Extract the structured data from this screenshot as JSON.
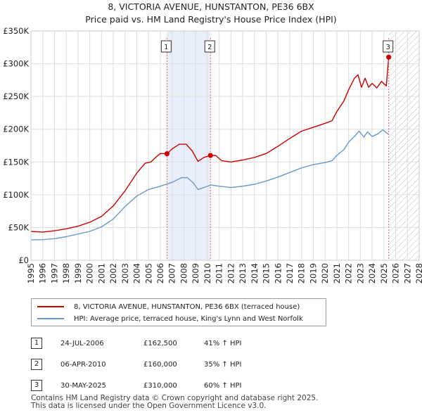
{
  "title_line1": "8, VICTORIA AVENUE, HUNSTANTON, PE36 6BX",
  "title_line2": "Price paid vs. HM Land Registry's House Price Index (HPI)",
  "chart_data": {
    "type": "line",
    "title": "8, VICTORIA AVENUE, HUNSTANTON, PE36 6BX",
    "subtitle": "Price paid vs. HM Land Registry's House Price Index (HPI)",
    "x_range": [
      1995,
      2028
    ],
    "ylim": [
      0,
      350000
    ],
    "y_ticks": [
      0,
      50000,
      100000,
      150000,
      200000,
      250000,
      300000,
      350000
    ],
    "y_tick_labels": [
      "£0",
      "£50K",
      "£100K",
      "£150K",
      "£200K",
      "£250K",
      "£300K",
      "£350K"
    ],
    "x_tick_labels": [
      "1995",
      "1996",
      "1997",
      "1998",
      "1999",
      "2000",
      "2001",
      "2002",
      "2003",
      "2004",
      "2005",
      "2006",
      "2007",
      "2008",
      "2009",
      "2010",
      "2011",
      "2012",
      "2013",
      "2014",
      "2015",
      "2016",
      "2017",
      "2018",
      "2019",
      "2020",
      "2021",
      "2022",
      "2023",
      "2024",
      "2025",
      "2026",
      "2027",
      "2028"
    ],
    "grid": true,
    "shaded_region": [
      2006.56,
      2010.26
    ],
    "future_hatch_from": 2025.41,
    "series": [
      {
        "name": "8, VICTORIA AVENUE, HUNSTANTON, PE36 6BX (terraced house)",
        "color": "#cc0000",
        "points": [
          [
            1995,
            44000
          ],
          [
            1996,
            43000
          ],
          [
            1997,
            45000
          ],
          [
            1998,
            48000
          ],
          [
            1999,
            52000
          ],
          [
            2000,
            58000
          ],
          [
            2001,
            67000
          ],
          [
            2002,
            83000
          ],
          [
            2003,
            106000
          ],
          [
            2004,
            133000
          ],
          [
            2004.7,
            148000
          ],
          [
            2005.2,
            150000
          ],
          [
            2005.6,
            157000
          ],
          [
            2006,
            163000
          ],
          [
            2006.56,
            162500
          ],
          [
            2007,
            170000
          ],
          [
            2007.6,
            177000
          ],
          [
            2008.2,
            177000
          ],
          [
            2008.7,
            167000
          ],
          [
            2009.2,
            151000
          ],
          [
            2009.7,
            157000
          ],
          [
            2010.26,
            160000
          ],
          [
            2010.7,
            160000
          ],
          [
            2011.2,
            152000
          ],
          [
            2012,
            150000
          ],
          [
            2013,
            153000
          ],
          [
            2014,
            157000
          ],
          [
            2015,
            163000
          ],
          [
            2016,
            174000
          ],
          [
            2017,
            186000
          ],
          [
            2018,
            197000
          ],
          [
            2019,
            203000
          ],
          [
            2020,
            209000
          ],
          [
            2020.6,
            213000
          ],
          [
            2021,
            227000
          ],
          [
            2021.6,
            243000
          ],
          [
            2022,
            260000
          ],
          [
            2022.5,
            278000
          ],
          [
            2022.8,
            283000
          ],
          [
            2023.1,
            264000
          ],
          [
            2023.4,
            278000
          ],
          [
            2023.7,
            264000
          ],
          [
            2024,
            270000
          ],
          [
            2024.4,
            263000
          ],
          [
            2024.8,
            273000
          ],
          [
            2025.2,
            266000
          ],
          [
            2025.41,
            310000
          ]
        ]
      },
      {
        "name": "HPI: Average price, terraced house, King's Lynn and West Norfolk",
        "color": "#6699cc",
        "points": [
          [
            1995,
            31000
          ],
          [
            1996,
            31500
          ],
          [
            1997,
            33000
          ],
          [
            1998,
            36000
          ],
          [
            1999,
            40000
          ],
          [
            2000,
            44000
          ],
          [
            2001,
            51000
          ],
          [
            2002,
            63000
          ],
          [
            2003,
            82000
          ],
          [
            2004,
            98000
          ],
          [
            2005,
            108000
          ],
          [
            2006,
            113000
          ],
          [
            2007,
            119000
          ],
          [
            2007.8,
            126000
          ],
          [
            2008.3,
            126000
          ],
          [
            2008.8,
            118000
          ],
          [
            2009.2,
            108000
          ],
          [
            2009.7,
            111000
          ],
          [
            2010.3,
            115000
          ],
          [
            2011,
            113000
          ],
          [
            2012,
            111000
          ],
          [
            2013,
            113000
          ],
          [
            2014,
            116000
          ],
          [
            2015,
            121000
          ],
          [
            2016,
            127000
          ],
          [
            2017,
            134000
          ],
          [
            2018,
            141000
          ],
          [
            2019,
            146000
          ],
          [
            2020,
            149000
          ],
          [
            2020.6,
            152000
          ],
          [
            2021,
            160000
          ],
          [
            2021.6,
            169000
          ],
          [
            2022,
            180000
          ],
          [
            2022.6,
            191000
          ],
          [
            2022.9,
            197000
          ],
          [
            2023.3,
            188000
          ],
          [
            2023.6,
            196000
          ],
          [
            2024,
            189000
          ],
          [
            2024.5,
            193000
          ],
          [
            2024.9,
            199000
          ],
          [
            2025.4,
            192000
          ]
        ]
      }
    ],
    "sales": [
      {
        "marker": "1",
        "x": 2006.56,
        "price": 162500
      },
      {
        "marker": "2",
        "x": 2010.26,
        "price": 160000
      },
      {
        "marker": "3",
        "x": 2025.41,
        "price": 310000
      }
    ]
  },
  "legend": {
    "property_label": "8, VICTORIA AVENUE, HUNSTANTON, PE36 6BX (terraced house)",
    "hpi_label": "HPI: Average price, terraced house, King's Lynn and West Norfolk",
    "property_color": "#cc0000",
    "hpi_color": "#6699cc"
  },
  "transactions": [
    {
      "num": "1",
      "date": "24-JUL-2006",
      "price": "£162,500",
      "pct": "41% ↑ HPI"
    },
    {
      "num": "2",
      "date": "06-APR-2010",
      "price": "£160,000",
      "pct": "35% ↑ HPI"
    },
    {
      "num": "3",
      "date": "30-MAY-2025",
      "price": "£310,000",
      "pct": "60% ↑ HPI"
    }
  ],
  "footer": {
    "line1": "Contains HM Land Registry data © Crown copyright and database right 2025.",
    "line2": "This data is licensed under the Open Government Licence v3.0."
  }
}
